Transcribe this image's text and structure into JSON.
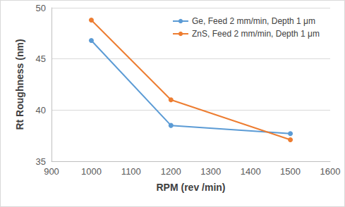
{
  "chart_data": {
    "type": "line",
    "x_label": "RPM (rev /min)",
    "y_label": "Rt Roughness (nm)",
    "x": [
      1000,
      1200,
      1500
    ],
    "series": [
      {
        "name": "Ge, Feed 2 mm/min, Depth 1 μm",
        "color": "#5b9bd5",
        "values": [
          46.8,
          38.5,
          37.7
        ],
        "marker": "circle"
      },
      {
        "name": "ZnS, Feed 2 mm/min, Depth 1 μm",
        "color": "#ed7d31",
        "values": [
          48.8,
          41.0,
          37.1
        ],
        "marker": "circle"
      }
    ],
    "xlim": [
      900,
      1600
    ],
    "xticks": [
      900,
      1000,
      1100,
      1200,
      1300,
      1400,
      1500,
      1600
    ],
    "ylim": [
      35,
      50
    ],
    "yticks": [
      35,
      40,
      45,
      50
    ],
    "grid": true,
    "legend": "upper right"
  }
}
